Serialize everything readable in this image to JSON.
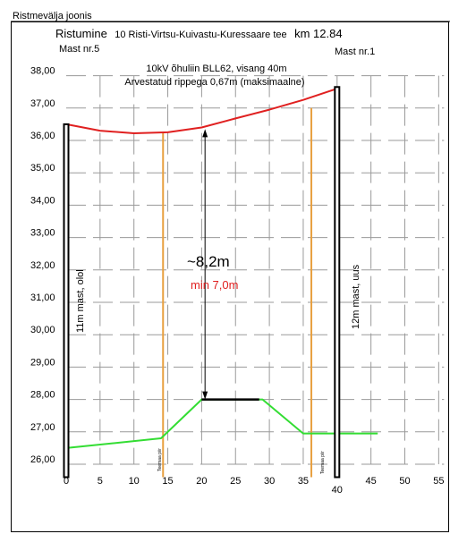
{
  "sheet_title": "Ristmevälja joonis",
  "heading": {
    "prefix": "Ristumine",
    "road": "10 Risti-Virtsu-Kuivastu-Kuressaare tee",
    "km": "km 12.84"
  },
  "mast_left_label": "Mast nr.5",
  "mast_right_label": "Mast nr.1",
  "line_info": "10kV õhuliin BLL62, visang 40m",
  "sag_info": "Arvestatud rippega 0,67m (maksimaalne)",
  "clearance_main": "~8,2m",
  "clearance_min": "min 7,0m",
  "mast_left_desc": "11m mast, olol",
  "mast_right_desc": "12m mast, uus",
  "boundary_left_label": "Teemaa piir",
  "boundary_right_label": "Teemaa piir",
  "colors": {
    "conductor": "#e02020",
    "ground": "#33dd33",
    "boundary": "#e8a040",
    "grid": "#9a9a9a",
    "min_text": "#e02020"
  },
  "chart_data": {
    "type": "line",
    "xlim": [
      0,
      55
    ],
    "ylim": [
      26,
      38
    ],
    "x_ticks": [
      "0",
      "5",
      "10",
      "15",
      "20",
      "25",
      "30",
      "35",
      "40",
      "45",
      "50",
      "55"
    ],
    "y_ticks": [
      "26,00",
      "27,00",
      "28,00",
      "29,00",
      "30,00",
      "31,00",
      "32,00",
      "33,00",
      "34,00",
      "35,00",
      "36,00",
      "37,00",
      "38,00"
    ],
    "series": [
      {
        "kind": "conductor",
        "x": [
          0,
          5,
          10,
          15,
          20,
          25,
          30,
          35,
          40
        ],
        "y": [
          36.5,
          36.3,
          36.22,
          36.25,
          36.4,
          36.68,
          36.95,
          37.25,
          37.6
        ]
      },
      {
        "kind": "ground",
        "x": [
          0,
          14,
          20,
          29,
          35,
          46
        ],
        "y": [
          26.5,
          26.8,
          28.0,
          28.0,
          26.95,
          26.95
        ]
      },
      {
        "kind": "road",
        "x": [
          20,
          28.5
        ],
        "y": [
          28.0,
          28.0
        ]
      }
    ],
    "masts": [
      {
        "x": 0,
        "bottom": 25.6,
        "top": 36.5
      },
      {
        "x": 40,
        "bottom": 25.6,
        "top": 37.65
      }
    ],
    "boundaries": [
      {
        "x": 14.3,
        "bottom": 25.6,
        "top": 36.22
      },
      {
        "x": 36.2,
        "bottom": 25.6,
        "top": 37.0
      }
    ],
    "clearance": {
      "x": 20.5,
      "y_top": 36.35,
      "y_bottom": 28.0
    }
  }
}
